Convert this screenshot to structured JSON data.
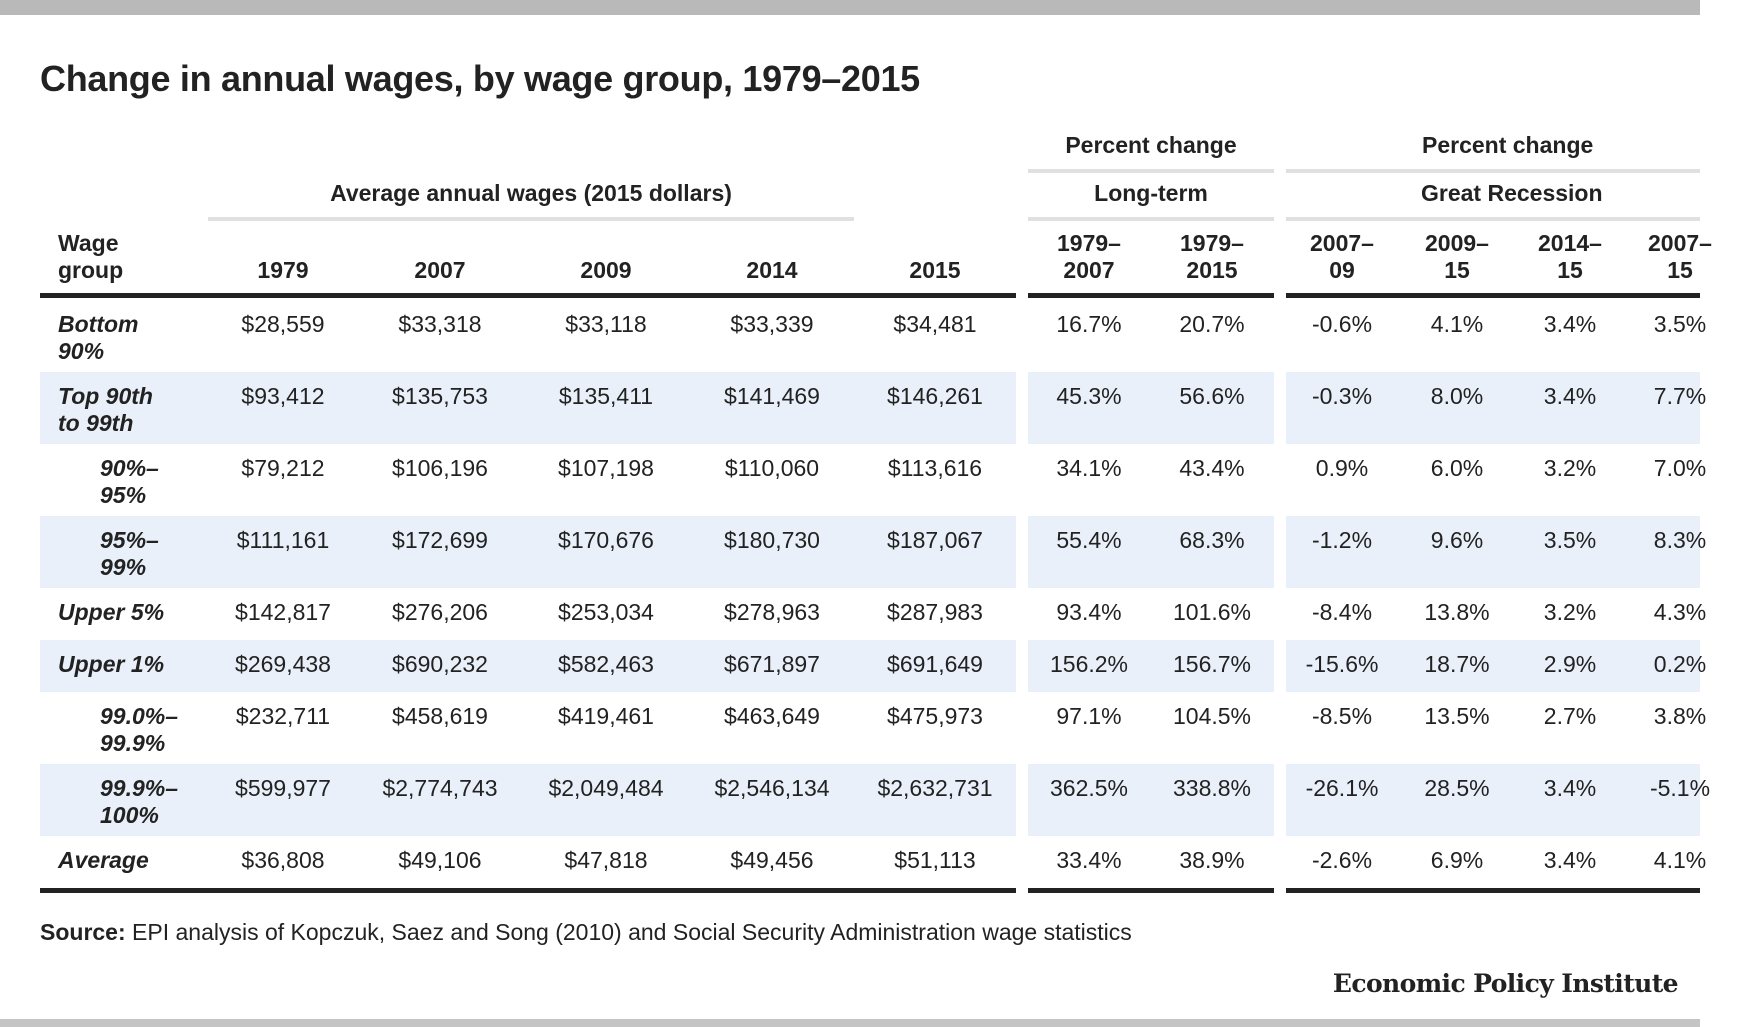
{
  "title": "Change in annual wages, by wage group, 1979–2015",
  "group_headers": {
    "pc1_top": "Percent change",
    "pc2_top": "Percent change",
    "wages": "Average annual wages (2015 dollars)",
    "long_term": "Long-term",
    "recession": "Great Recession"
  },
  "columns": [
    "Wage\ngroup",
    "1979",
    "2007",
    "2009",
    "2014",
    "2015",
    "1979–\n2007",
    "1979–\n2015",
    "2007–\n09",
    "2009–\n15",
    "2014–\n15",
    "2007–\n15"
  ],
  "rows": [
    {
      "label": "Bottom\n90%",
      "indent": false,
      "cells": [
        "$28,559",
        "$33,318",
        "$33,118",
        "$33,339",
        "$34,481",
        "16.7%",
        "20.7%",
        "-0.6%",
        "4.1%",
        "3.4%",
        "3.5%"
      ]
    },
    {
      "label": "Top 90th\nto 99th",
      "indent": false,
      "cells": [
        "$93,412",
        "$135,753",
        "$135,411",
        "$141,469",
        "$146,261",
        "45.3%",
        "56.6%",
        "-0.3%",
        "8.0%",
        "3.4%",
        "7.7%"
      ]
    },
    {
      "label": "90%–\n95%",
      "indent": true,
      "cells": [
        "$79,212",
        "$106,196",
        "$107,198",
        "$110,060",
        "$113,616",
        "34.1%",
        "43.4%",
        "0.9%",
        "6.0%",
        "3.2%",
        "7.0%"
      ]
    },
    {
      "label": "95%–\n99%",
      "indent": true,
      "cells": [
        "$111,161",
        "$172,699",
        "$170,676",
        "$180,730",
        "$187,067",
        "55.4%",
        "68.3%",
        "-1.2%",
        "9.6%",
        "3.5%",
        "8.3%"
      ]
    },
    {
      "label": "Upper 5%",
      "indent": false,
      "cells": [
        "$142,817",
        "$276,206",
        "$253,034",
        "$278,963",
        "$287,983",
        "93.4%",
        "101.6%",
        "-8.4%",
        "13.8%",
        "3.2%",
        "4.3%"
      ]
    },
    {
      "label": "Upper 1%",
      "indent": false,
      "cells": [
        "$269,438",
        "$690,232",
        "$582,463",
        "$671,897",
        "$691,649",
        "156.2%",
        "156.7%",
        "-15.6%",
        "18.7%",
        "2.9%",
        "0.2%"
      ]
    },
    {
      "label": "99.0%–\n99.9%",
      "indent": true,
      "cells": [
        "$232,711",
        "$458,619",
        "$419,461",
        "$463,649",
        "$475,973",
        "97.1%",
        "104.5%",
        "-8.5%",
        "13.5%",
        "2.7%",
        "3.8%"
      ]
    },
    {
      "label": "99.9%–\n100%",
      "indent": true,
      "cells": [
        "$599,977",
        "$2,774,743",
        "$2,049,484",
        "$2,546,134",
        "$2,632,731",
        "362.5%",
        "338.8%",
        "-26.1%",
        "28.5%",
        "3.4%",
        "-5.1%"
      ]
    },
    {
      "label": "Average",
      "indent": false,
      "cells": [
        "$36,808",
        "$49,106",
        "$47,818",
        "$49,456",
        "$51,113",
        "33.4%",
        "38.9%",
        "-2.6%",
        "6.9%",
        "3.4%",
        "4.1%"
      ]
    }
  ],
  "source": {
    "label": "Source:",
    "text": " EPI analysis of Kopczuk, Saez and Song (2010) and Social Security Administration wage statistics"
  },
  "brand": "Economic Policy Institute",
  "colors": {
    "band": "#e9f0fa",
    "rule_dark": "#222222",
    "rule_light": "#e0e0e0",
    "text": "#222222"
  },
  "chart_data": {
    "type": "table",
    "title": "Change in annual wages, by wage group, 1979–2015",
    "columns": [
      "Wage group",
      "1979",
      "2007",
      "2009",
      "2014",
      "2015",
      "1979–2007",
      "1979–2015",
      "2007–09",
      "2009–15",
      "2014–15",
      "2007–15"
    ],
    "rows": [
      [
        "Bottom 90%",
        28559,
        33318,
        33118,
        33339,
        34481,
        16.7,
        20.7,
        -0.6,
        4.1,
        3.4,
        3.5
      ],
      [
        "Top 90th to 99th",
        93412,
        135753,
        135411,
        141469,
        146261,
        45.3,
        56.6,
        -0.3,
        8.0,
        3.4,
        7.7
      ],
      [
        "90%–95%",
        79212,
        106196,
        107198,
        110060,
        113616,
        34.1,
        43.4,
        0.9,
        6.0,
        3.2,
        7.0
      ],
      [
        "95%–99%",
        111161,
        172699,
        170676,
        180730,
        187067,
        55.4,
        68.3,
        -1.2,
        9.6,
        3.5,
        8.3
      ],
      [
        "Upper 5%",
        142817,
        276206,
        253034,
        278963,
        287983,
        93.4,
        101.6,
        -8.4,
        13.8,
        3.2,
        4.3
      ],
      [
        "Upper 1%",
        269438,
        690232,
        582463,
        671897,
        691649,
        156.2,
        156.7,
        -15.6,
        18.7,
        2.9,
        0.2
      ],
      [
        "99.0%–99.9%",
        232711,
        458619,
        419461,
        463649,
        475973,
        97.1,
        104.5,
        -8.5,
        13.5,
        2.7,
        3.8
      ],
      [
        "99.9%–100%",
        599977,
        2774743,
        2049484,
        2546134,
        2632731,
        362.5,
        338.8,
        -26.1,
        28.5,
        3.4,
        -5.1
      ],
      [
        "Average",
        36808,
        49106,
        47818,
        49456,
        51113,
        33.4,
        38.9,
        -2.6,
        6.9,
        3.4,
        4.1
      ]
    ]
  }
}
